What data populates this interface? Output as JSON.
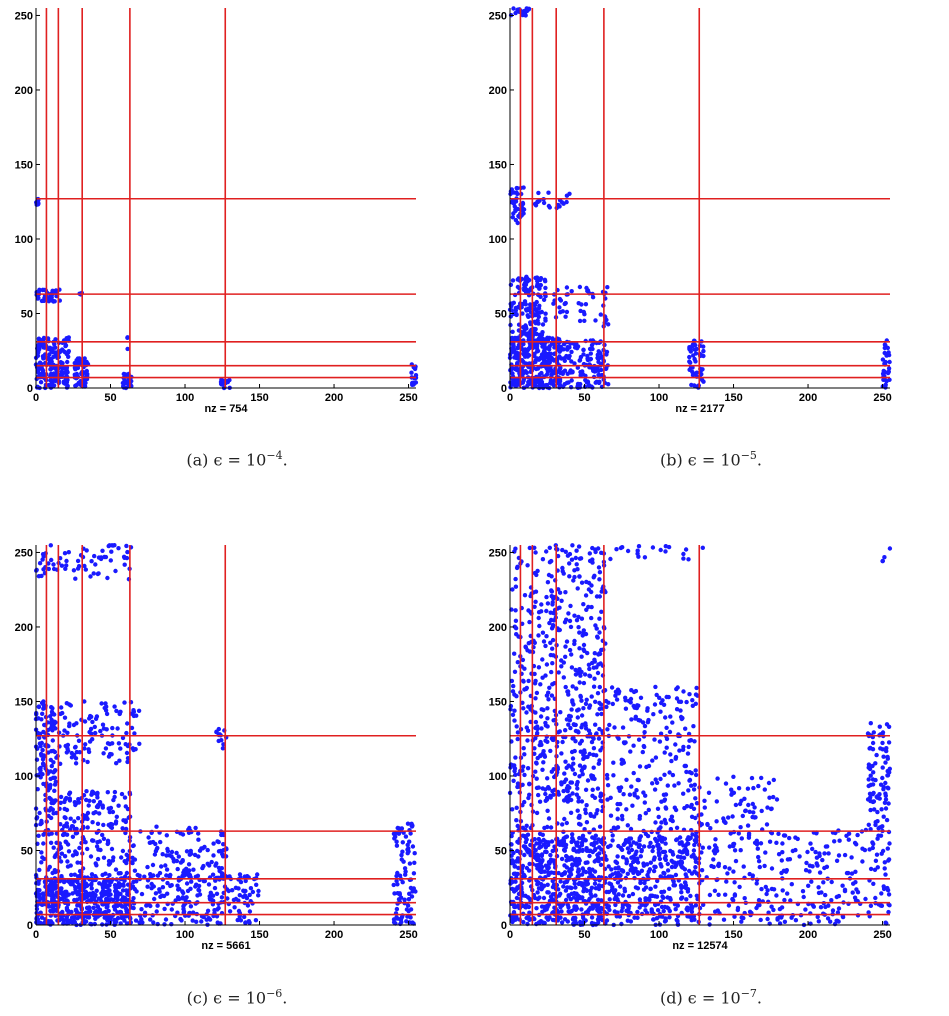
{
  "colors": {
    "points": "#1a1aff",
    "block_lines": "#e02020",
    "axes": "#000000"
  },
  "chart_data": [
    {
      "type": "scatter",
      "subtype": "sparsity-pattern",
      "panel_label": "(a)",
      "caption_text": "ϵ = 10",
      "caption_exponent": "−4",
      "xlabel": "nz = 754",
      "nz": 754,
      "xlim": [
        0,
        255
      ],
      "ylim": [
        0,
        255
      ],
      "xticks": [
        0,
        50,
        100,
        150,
        200,
        250
      ],
      "yticks": [
        0,
        50,
        100,
        150,
        200,
        250
      ],
      "block_boundaries": [
        7,
        15,
        31,
        63,
        127
      ],
      "clusters": [
        {
          "x": [
            0,
            2
          ],
          "y": [
            122,
            128
          ],
          "n": 8
        },
        {
          "x": [
            0,
            16
          ],
          "y": [
            58,
            66
          ],
          "n": 45
        },
        {
          "x": [
            28,
            32
          ],
          "y": [
            62,
            65
          ],
          "n": 3
        },
        {
          "x": [
            0,
            22
          ],
          "y": [
            0,
            34
          ],
          "n": 190
        },
        {
          "x": [
            26,
            35
          ],
          "y": [
            0,
            20
          ],
          "n": 60
        },
        {
          "x": [
            58,
            64
          ],
          "y": [
            0,
            10
          ],
          "n": 30
        },
        {
          "x": [
            60,
            62
          ],
          "y": [
            24,
            34
          ],
          "n": 3
        },
        {
          "x": [
            124,
            130
          ],
          "y": [
            0,
            6
          ],
          "n": 22
        },
        {
          "x": [
            252,
            255
          ],
          "y": [
            0,
            16
          ],
          "n": 18
        }
      ]
    },
    {
      "type": "scatter",
      "subtype": "sparsity-pattern",
      "panel_label": "(b)",
      "caption_text": "ϵ = 10",
      "caption_exponent": "−5",
      "xlabel": "nz = 2177",
      "nz": 2177,
      "xlim": [
        0,
        255
      ],
      "ylim": [
        0,
        255
      ],
      "xticks": [
        0,
        50,
        100,
        150,
        200,
        250
      ],
      "yticks": [
        0,
        50,
        100,
        150,
        200,
        250
      ],
      "block_boundaries": [
        7,
        15,
        31,
        63,
        127
      ],
      "clusters": [
        {
          "x": [
            0,
            14
          ],
          "y": [
            250,
            255
          ],
          "n": 20
        },
        {
          "x": [
            0,
            10
          ],
          "y": [
            110,
            135
          ],
          "n": 40
        },
        {
          "x": [
            16,
            40
          ],
          "y": [
            118,
            132
          ],
          "n": 20
        },
        {
          "x": [
            0,
            24
          ],
          "y": [
            30,
            75
          ],
          "n": 160
        },
        {
          "x": [
            28,
            66
          ],
          "y": [
            45,
            68
          ],
          "n": 40
        },
        {
          "x": [
            0,
            34
          ],
          "y": [
            0,
            34
          ],
          "n": 320
        },
        {
          "x": [
            34,
            66
          ],
          "y": [
            0,
            32
          ],
          "n": 140
        },
        {
          "x": [
            62,
            66
          ],
          "y": [
            40,
            66
          ],
          "n": 8
        },
        {
          "x": [
            120,
            130
          ],
          "y": [
            0,
            32
          ],
          "n": 50
        },
        {
          "x": [
            250,
            255
          ],
          "y": [
            0,
            34
          ],
          "n": 30
        }
      ]
    },
    {
      "type": "scatter",
      "subtype": "sparsity-pattern",
      "panel_label": "(c)",
      "caption_text": "ϵ = 10",
      "caption_exponent": "−6",
      "xlabel": "nz = 5661",
      "nz": 5661,
      "xlim": [
        0,
        255
      ],
      "ylim": [
        0,
        255
      ],
      "xticks": [
        0,
        50,
        100,
        150,
        200,
        250
      ],
      "yticks": [
        0,
        50,
        100,
        150,
        200,
        250
      ],
      "block_boundaries": [
        7,
        15,
        31,
        63,
        127
      ],
      "clusters": [
        {
          "x": [
            0,
            64
          ],
          "y": [
            232,
            255
          ],
          "n": 70
        },
        {
          "x": [
            0,
            14
          ],
          "y": [
            90,
            150
          ],
          "n": 110
        },
        {
          "x": [
            14,
            70
          ],
          "y": [
            108,
            150
          ],
          "n": 110
        },
        {
          "x": [
            120,
            128
          ],
          "y": [
            118,
            132
          ],
          "n": 12
        },
        {
          "x": [
            0,
            64
          ],
          "y": [
            30,
            90
          ],
          "n": 260
        },
        {
          "x": [
            64,
            128
          ],
          "y": [
            32,
            66
          ],
          "n": 110
        },
        {
          "x": [
            0,
            64
          ],
          "y": [
            0,
            32
          ],
          "n": 460
        },
        {
          "x": [
            64,
            150
          ],
          "y": [
            0,
            34
          ],
          "n": 220
        },
        {
          "x": [
            240,
            255
          ],
          "y": [
            0,
            68
          ],
          "n": 90
        }
      ]
    },
    {
      "type": "scatter",
      "subtype": "sparsity-pattern",
      "panel_label": "(d)",
      "caption_text": "ϵ = 10",
      "caption_exponent": "−7",
      "xlabel": "nz = 12574",
      "nz": 12574,
      "xlim": [
        0,
        255
      ],
      "ylim": [
        0,
        255
      ],
      "xticks": [
        0,
        50,
        100,
        150,
        200,
        250
      ],
      "yticks": [
        0,
        50,
        100,
        150,
        200,
        250
      ],
      "block_boundaries": [
        7,
        15,
        31,
        63,
        127
      ],
      "clusters": [
        {
          "x": [
            0,
            64
          ],
          "y": [
            180,
            255
          ],
          "n": 220
        },
        {
          "x": [
            64,
            130
          ],
          "y": [
            245,
            255
          ],
          "n": 20
        },
        {
          "x": [
            0,
            64
          ],
          "y": [
            60,
            180
          ],
          "n": 420
        },
        {
          "x": [
            64,
            128
          ],
          "y": [
            60,
            160
          ],
          "n": 240
        },
        {
          "x": [
            128,
            180
          ],
          "y": [
            60,
            100
          ],
          "n": 60
        },
        {
          "x": [
            0,
            64
          ],
          "y": [
            0,
            60
          ],
          "n": 560
        },
        {
          "x": [
            64,
            128
          ],
          "y": [
            0,
            60
          ],
          "n": 380
        },
        {
          "x": [
            128,
            255
          ],
          "y": [
            0,
            64
          ],
          "n": 300
        },
        {
          "x": [
            240,
            255
          ],
          "y": [
            64,
            136
          ],
          "n": 90
        },
        {
          "x": [
            250,
            255
          ],
          "y": [
            240,
            255
          ],
          "n": 4
        }
      ]
    }
  ]
}
